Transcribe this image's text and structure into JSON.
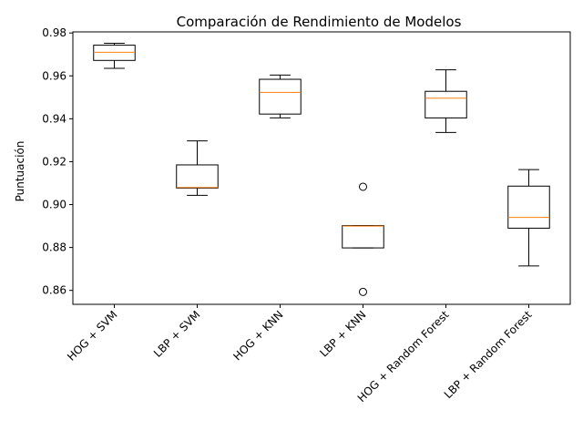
{
  "chart_data": {
    "type": "box",
    "title": "Comparación de Rendimiento de Modelos",
    "xlabel": "",
    "ylabel": "Puntuación",
    "ylim": [
      0.8535,
      0.9805
    ],
    "yticks": [
      "0.86",
      "0.88",
      "0.90",
      "0.92",
      "0.94",
      "0.96",
      "0.98"
    ],
    "grid": false,
    "categories": [
      "HOG + SVM",
      "LBP + SVM",
      "HOG + KNN",
      "LBP + KNN",
      "HOG + Random Forest",
      "LBP + Random Forest"
    ],
    "boxes": [
      {
        "whisker_low": 0.9635,
        "q1": 0.9672,
        "median": 0.971,
        "q3": 0.9743,
        "whisker_high": 0.9752,
        "outliers": []
      },
      {
        "whisker_low": 0.9043,
        "q1": 0.9077,
        "median": 0.908,
        "q3": 0.9185,
        "whisker_high": 0.9297,
        "outliers": []
      },
      {
        "whisker_low": 0.9404,
        "q1": 0.9422,
        "median": 0.9523,
        "q3": 0.9584,
        "whisker_high": 0.9604,
        "outliers": []
      },
      {
        "whisker_low": 0.8798,
        "q1": 0.8798,
        "median": 0.89,
        "q3": 0.8902,
        "whisker_high": 0.8902,
        "outliers": [
          0.9083,
          0.8593
        ]
      },
      {
        "whisker_low": 0.9336,
        "q1": 0.9404,
        "median": 0.9496,
        "q3": 0.9528,
        "whisker_high": 0.9628,
        "outliers": []
      },
      {
        "whisker_low": 0.8714,
        "q1": 0.889,
        "median": 0.894,
        "q3": 0.9086,
        "whisker_high": 0.9163,
        "outliers": []
      }
    ],
    "colors": {
      "box": "#000000",
      "median": "#ff7f0e",
      "outlier": "#000000"
    }
  }
}
